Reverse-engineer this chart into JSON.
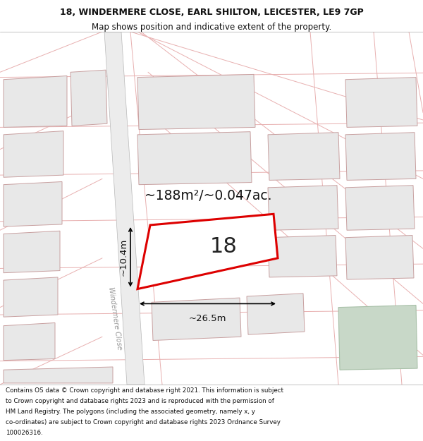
{
  "title_line1": "18, WINDERMERE CLOSE, EARL SHILTON, LEICESTER, LE9 7GP",
  "title_line2": "Map shows position and indicative extent of the property.",
  "footer_lines": [
    "Contains OS data © Crown copyright and database right 2021. This information is subject",
    "to Crown copyright and database rights 2023 and is reproduced with the permission of",
    "HM Land Registry. The polygons (including the associated geometry, namely x, y",
    "co-ordinates) are subject to Crown copyright and database rights 2023 Ordnance Survey",
    "100026316."
  ],
  "map_bg": "#ffffff",
  "block_fill": "#e8e8e8",
  "block_edge": "#c8a0a0",
  "road_fill": "#f0f0f0",
  "road_edge": "#c0c0c0",
  "road_line": "#e8b0b0",
  "plot_edge": "#dd0000",
  "green_fill": "#c8d8c8",
  "green_edge": "#a8c0a8",
  "area_label": "~188m²/~0.047ac.",
  "number_label": "18",
  "width_label": "~26.5m",
  "height_label": "~10.4m",
  "street_label": "Windermere Close",
  "title_fontsize": 9.0,
  "subtitle_fontsize": 8.5,
  "footer_fontsize": 6.3,
  "area_fontsize": 13.5,
  "number_fontsize": 22,
  "measure_fontsize": 9.5
}
